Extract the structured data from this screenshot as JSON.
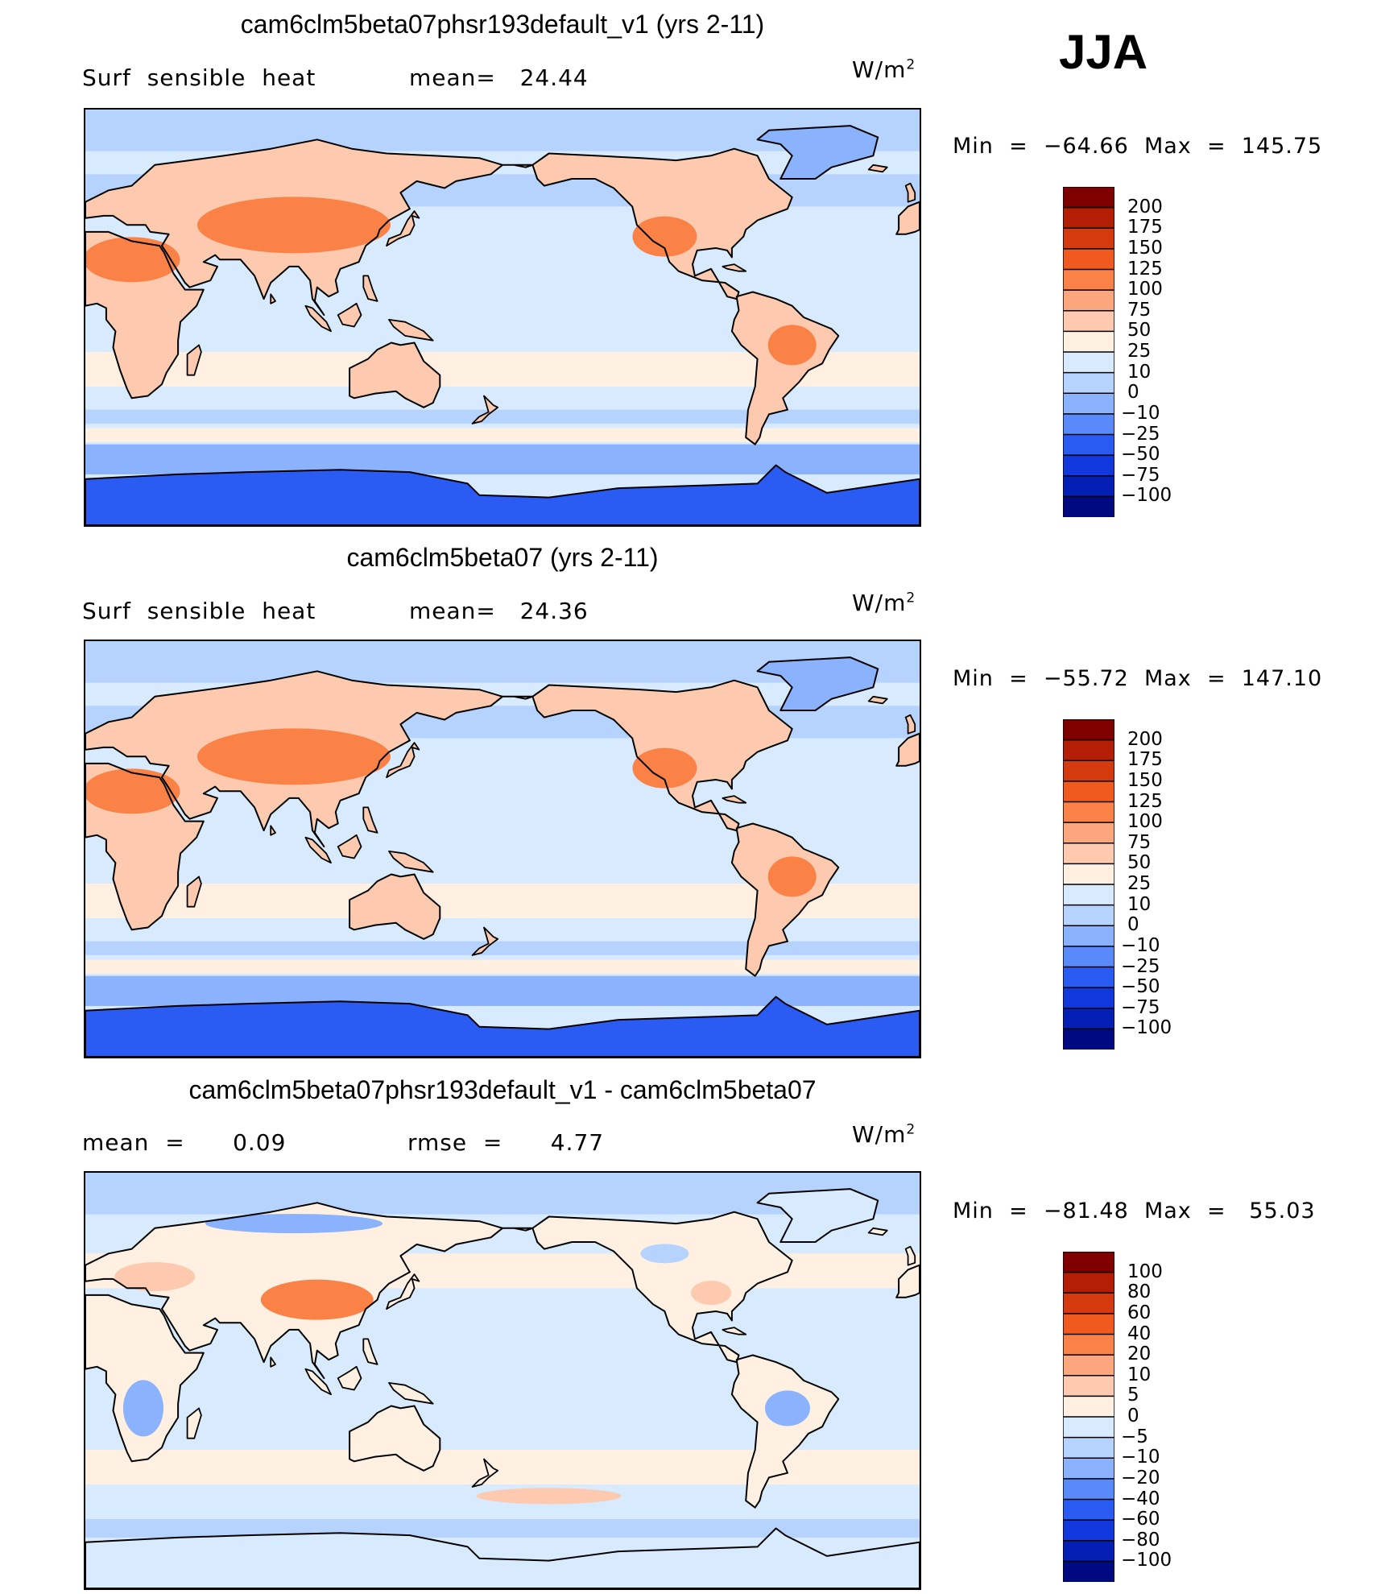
{
  "season": "JJA",
  "panels": [
    {
      "title": "cam6clm5beta07phsr193default_v1 (yrs 2-11)",
      "left_label": "Surf  sensible  heat",
      "center_label": "mean=   24.44",
      "units_base": "W/m",
      "units_exp": "2",
      "min_label": "Min  =  −64.66",
      "max_label": "Max  =  145.75",
      "colorbar": {
        "levels": [
          "200",
          "175",
          "150",
          "125",
          "100",
          "75",
          "50",
          "25",
          "10",
          "0",
          "−10",
          "−25",
          "−50",
          "−75",
          "−100"
        ],
        "colors": [
          "#800000",
          "#b41e05",
          "#d43a0d",
          "#f05a1e",
          "#fa8246",
          "#fca67e",
          "#fdcab0",
          "#fff0e2",
          "#d8eafe",
          "#b6d2fe",
          "#8ab2fd",
          "#5a8afa",
          "#2a5cf4",
          "#1038dc",
          "#0420b4",
          "#000a80"
        ]
      }
    },
    {
      "title": "cam6clm5beta07 (yrs 2-11)",
      "left_label": "Surf  sensible  heat",
      "center_label": "mean=   24.36",
      "units_base": "W/m",
      "units_exp": "2",
      "min_label": "Min  =  −55.72",
      "max_label": "Max  =  147.10",
      "colorbar": {
        "levels": [
          "200",
          "175",
          "150",
          "125",
          "100",
          "75",
          "50",
          "25",
          "10",
          "0",
          "−10",
          "−25",
          "−50",
          "−75",
          "−100"
        ],
        "colors": [
          "#800000",
          "#b41e05",
          "#d43a0d",
          "#f05a1e",
          "#fa8246",
          "#fca67e",
          "#fdcab0",
          "#fff0e2",
          "#d8eafe",
          "#b6d2fe",
          "#8ab2fd",
          "#5a8afa",
          "#2a5cf4",
          "#1038dc",
          "#0420b4",
          "#000a80"
        ]
      }
    },
    {
      "title": "cam6clm5beta07phsr193default_v1 - cam6clm5beta07",
      "left_label": "mean  =      0.09",
      "center_label": "rmse  =      4.77",
      "units_base": "W/m",
      "units_exp": "2",
      "min_label": "Min  =  −81.48",
      "max_label": "Max  =   55.03",
      "colorbar": {
        "levels": [
          "100",
          "80",
          "60",
          "40",
          "20",
          "10",
          "5",
          "0",
          "−5",
          "−10",
          "−20",
          "−40",
          "−60",
          "−80",
          "−100"
        ],
        "colors": [
          "#800000",
          "#b41e05",
          "#d43a0d",
          "#f05a1e",
          "#fa8246",
          "#fca67e",
          "#fdcab0",
          "#fff0e2",
          "#d8eafe",
          "#b6d2fe",
          "#8ab2fd",
          "#5a8afa",
          "#2a5cf4",
          "#1038dc",
          "#0420b4",
          "#000a80"
        ]
      }
    }
  ],
  "map_colors": {
    "ocean_light": "#d8eafe",
    "ocean_mid": "#b6d2fe",
    "ocean_dark": "#8ab2fd",
    "cold_strong": "#2a5cf4",
    "warm_light": "#fff0e2",
    "warm_mid": "#fdcab0",
    "warm_strong": "#fa8246",
    "coast": "#000000"
  }
}
